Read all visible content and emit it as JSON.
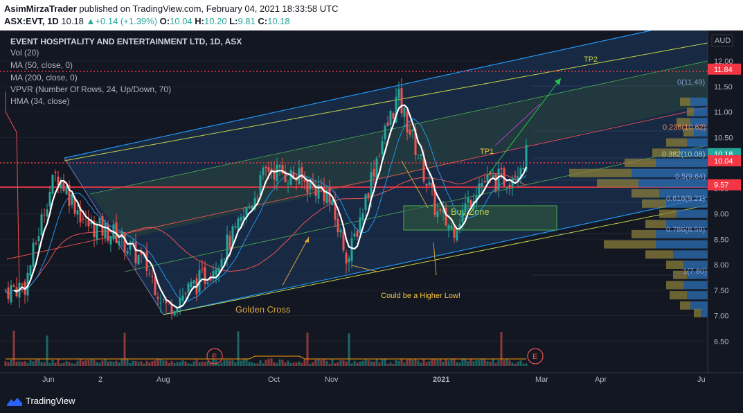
{
  "header": {
    "author": "AsimMirzaTrader",
    "published": "published on TradingView.com, February 04, 2021 18:33:58 UTC",
    "symbol": "ASX:EVT, 1D",
    "last": "10.18",
    "change": "+0.14 (+1.39%)",
    "o_label": "O:",
    "o": "10.04",
    "h_label": "H:",
    "h": "10.20",
    "l_label": "L:",
    "l": "9.81",
    "c_label": "C:",
    "c": "10.18"
  },
  "title": "EVENT HOSPITALITY AND ENTERTAINMENT LTD, 1D, ASX",
  "indicators": [
    "Vol (20)",
    "MA (50, close, 0)",
    "MA (200, close, 0)",
    "VPVR (Number Of Rows, 24, Up/Down, 70)",
    "HMA (34, close)"
  ],
  "currency": "AUD",
  "price_scale": [
    "12.00",
    "11.50",
    "11.00",
    "10.50",
    "10.00",
    "9.50",
    "9.00",
    "8.50",
    "8.00",
    "7.50",
    "7.00",
    "6.50"
  ],
  "price_flags": [
    {
      "label": "11.84",
      "color": "#f23645"
    },
    {
      "label": "10.18",
      "color": "#26a69a"
    },
    {
      "label": "10.04",
      "color": "#f23645"
    },
    {
      "label": "9.57",
      "color": "#f23645"
    }
  ],
  "time_scale": [
    "Jun",
    "2",
    "Aug",
    "Oct",
    "Nov",
    "2021",
    "Mar",
    "Apr",
    "Ju"
  ],
  "fib_levels": [
    "0(11.49)",
    "0.236(10.62)",
    "0.382(10.08)",
    "0.5(9.64)",
    "0.618(9.21)",
    "0.786(8.59)",
    "1(7.80)"
  ],
  "annotations": {
    "tp2": "TP2",
    "tp1": "TP1",
    "buy_zone": "Buy Zone",
    "golden_cross": "Golden Cross",
    "higher_low": "Could be a Higher Low!",
    "earnings": "E"
  },
  "colors": {
    "up": "#26a69a",
    "down": "#ef5350",
    "hma": "#ffffff",
    "ma50": "#2196f3",
    "ma200": "#ef5350",
    "channel": "#2196f3"
  },
  "chart_data": {
    "type": "candlestick",
    "ylim": [
      6.2,
      12.3
    ],
    "key_levels": [
      11.84,
      10.04,
      9.57
    ],
    "close_path": [
      [
        "2020-05-15",
        7.5
      ],
      [
        "2020-05-25",
        7.6
      ],
      [
        "2020-06-05",
        9.3
      ],
      [
        "2020-06-10",
        9.8
      ],
      [
        "2020-06-25",
        8.8
      ],
      [
        "2020-07-10",
        8.6
      ],
      [
        "2020-07-25",
        8.0
      ],
      [
        "2020-08-05",
        7.15
      ],
      [
        "2020-08-25",
        7.8
      ],
      [
        "2020-09-10",
        8.7
      ],
      [
        "2020-09-25",
        9.9
      ],
      [
        "2020-10-10",
        9.7
      ],
      [
        "2020-10-25",
        9.4
      ],
      [
        "2020-11-05",
        8.1
      ],
      [
        "2020-11-20",
        10.2
      ],
      [
        "2020-11-30",
        11.3
      ],
      [
        "2020-12-10",
        10.2
      ],
      [
        "2020-12-20",
        9.0
      ],
      [
        "2020-12-28",
        8.7
      ],
      [
        "2021-01-10",
        9.6
      ],
      [
        "2021-01-25",
        9.7
      ],
      [
        "2021-02-04",
        10.18
      ]
    ]
  }
}
